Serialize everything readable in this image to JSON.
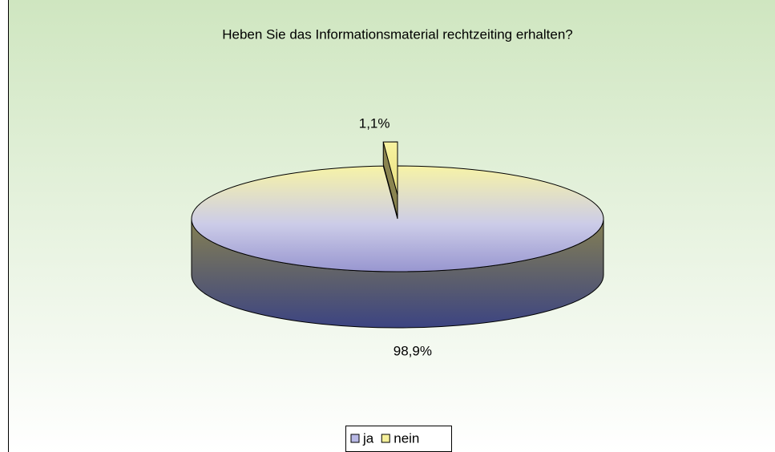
{
  "chart_data": {
    "type": "pie3d",
    "title": "Heben Sie das Informationsmaterial rechtzeiting erhalten?",
    "categories": [
      "ja",
      "nein"
    ],
    "values": [
      98.9,
      1.1
    ],
    "value_labels": [
      "98,9%",
      "1,1%"
    ],
    "colors": [
      "#b8b8e6",
      "#f5f09a"
    ],
    "legend": "bottom"
  }
}
